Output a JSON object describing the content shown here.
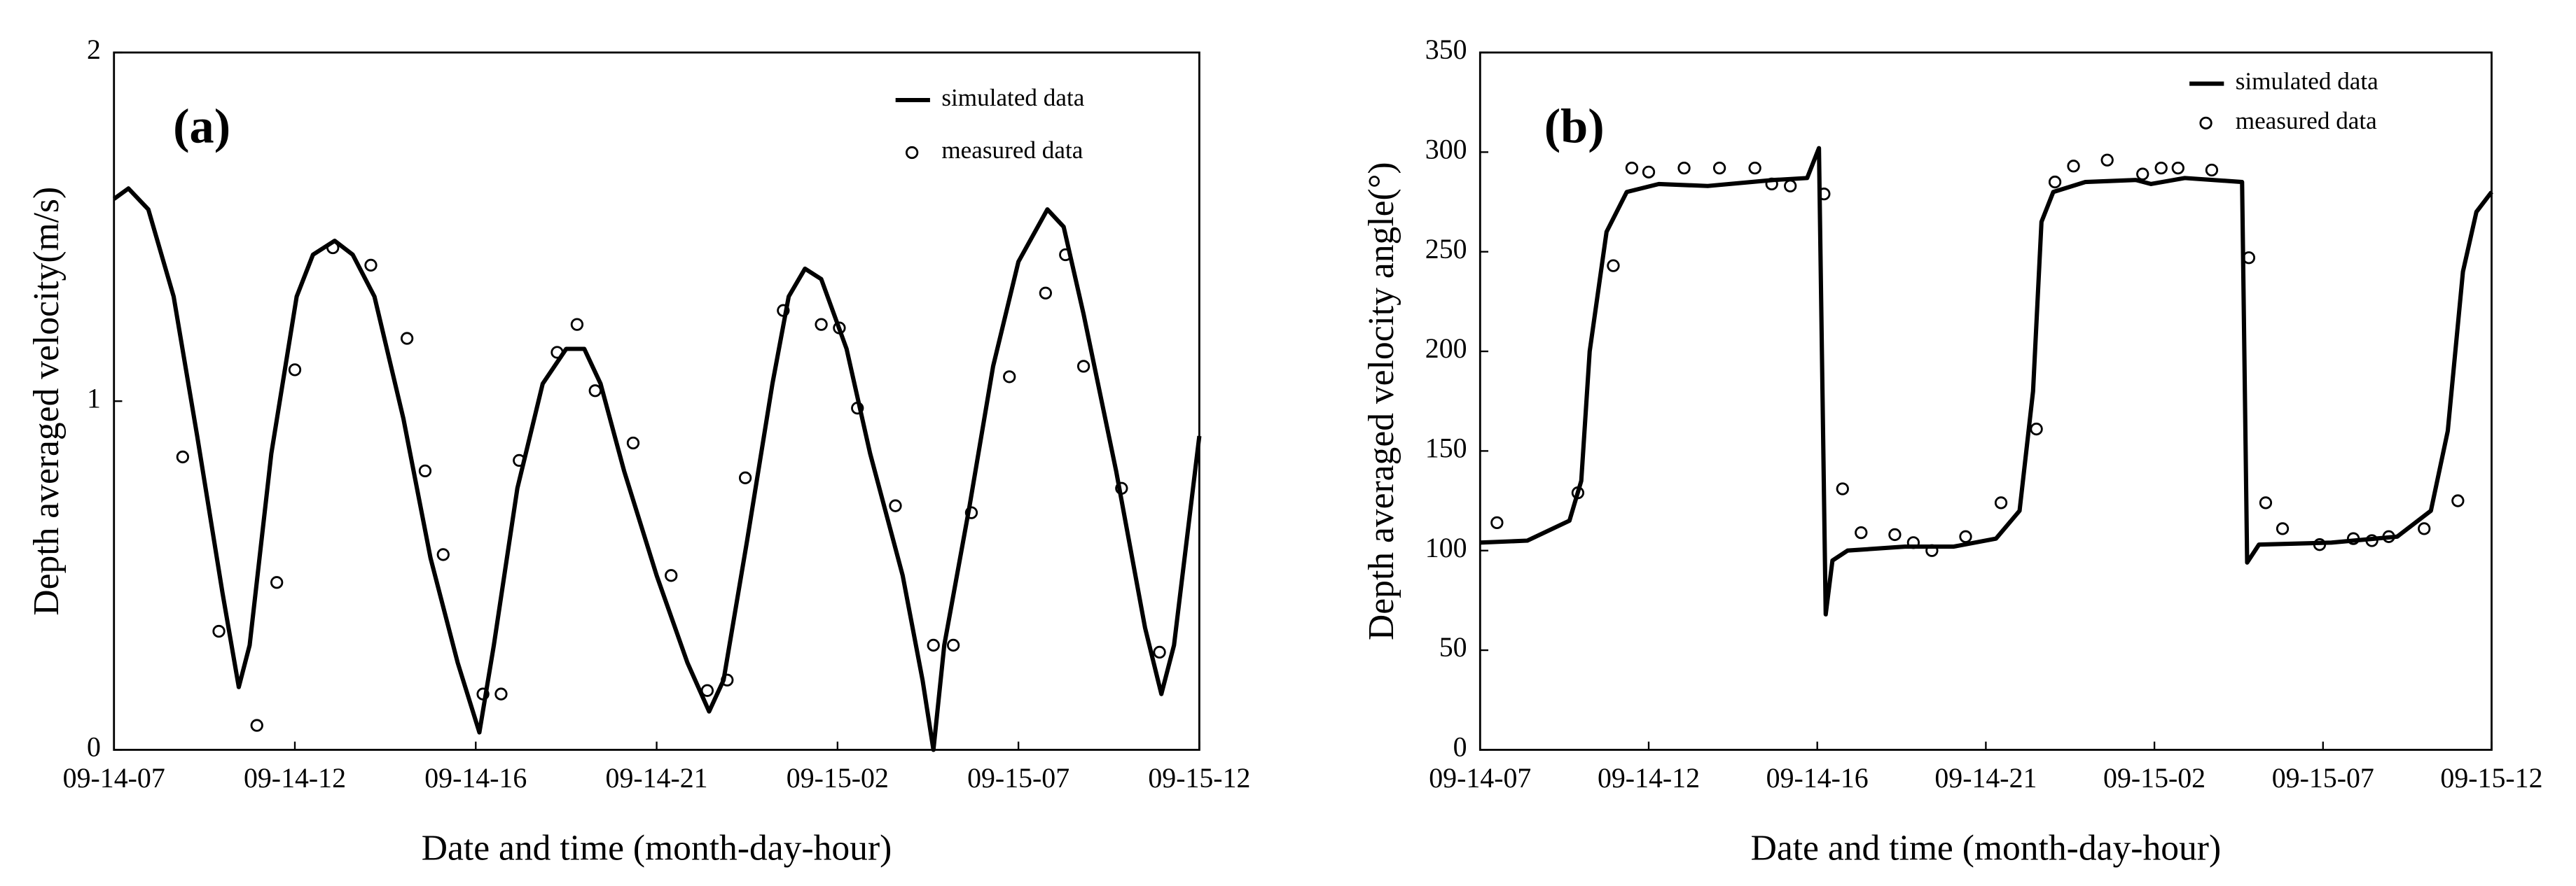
{
  "chart_data": [
    {
      "type": "line",
      "annotation": "(a)",
      "x_label": "Date and time (month-day-hour)",
      "y_label": "Depth averaged velocity(m/s)",
      "xlim": [
        0,
        6
      ],
      "ylim": [
        0,
        2
      ],
      "legend": "upper right",
      "xticks": [
        {
          "value": 0,
          "label": "09-14-07"
        },
        {
          "value": 1,
          "label": "09-14-12"
        },
        {
          "value": 2,
          "label": "09-14-16"
        },
        {
          "value": 3,
          "label": "09-14-21"
        },
        {
          "value": 4,
          "label": "09-15-02"
        },
        {
          "value": 5,
          "label": "09-15-07"
        },
        {
          "value": 6,
          "label": "09-15-12"
        }
      ],
      "yticks": [
        0,
        1,
        2
      ],
      "series": [
        {
          "name": "simulated data",
          "color": "#000000",
          "type": "line",
          "x": [
            0,
            0.08,
            0.19,
            0.33,
            0.46,
            0.6,
            0.69,
            0.75,
            0.87,
            1.01,
            1.1,
            1.22,
            1.32,
            1.44,
            1.6,
            1.75,
            1.9,
            2.02,
            2.1,
            2.23,
            2.37,
            2.5,
            2.6,
            2.69,
            2.82,
            3.0,
            3.17,
            3.29,
            3.37,
            3.5,
            3.64,
            3.73,
            3.82,
            3.91,
            4.05,
            4.18,
            4.36,
            4.47,
            4.53,
            4.59,
            4.73,
            4.86,
            5.0,
            5.16,
            5.25,
            5.36,
            5.54,
            5.7,
            5.79,
            5.86,
            6.0
          ],
          "values": [
            1.58,
            1.61,
            1.55,
            1.3,
            0.9,
            0.45,
            0.18,
            0.3,
            0.85,
            1.3,
            1.42,
            1.46,
            1.42,
            1.3,
            0.95,
            0.55,
            0.25,
            0.05,
            0.3,
            0.75,
            1.05,
            1.15,
            1.15,
            1.05,
            0.8,
            0.5,
            0.25,
            0.11,
            0.2,
            0.6,
            1.05,
            1.3,
            1.38,
            1.35,
            1.15,
            0.85,
            0.5,
            0.2,
            0.0,
            0.3,
            0.7,
            1.1,
            1.4,
            1.55,
            1.5,
            1.25,
            0.8,
            0.35,
            0.16,
            0.3,
            0.9
          ]
        },
        {
          "name": "measured data",
          "color": "#000000",
          "type": "scatter",
          "x": [
            0.38,
            0.58,
            0.79,
            0.9,
            1.0,
            1.21,
            1.42,
            1.62,
            1.72,
            1.82,
            2.04,
            2.14,
            2.24,
            2.45,
            2.56,
            2.66,
            2.87,
            3.08,
            3.28,
            3.39,
            3.49,
            3.7,
            3.91,
            4.01,
            4.11,
            4.32,
            4.53,
            4.64,
            4.74,
            4.95,
            5.15,
            5.26,
            5.36,
            5.57,
            5.78
          ],
          "values": [
            0.84,
            0.34,
            0.07,
            0.48,
            1.09,
            1.44,
            1.39,
            1.18,
            0.8,
            0.56,
            0.16,
            0.16,
            0.83,
            1.14,
            1.22,
            1.03,
            0.88,
            0.5,
            0.17,
            0.2,
            0.78,
            1.26,
            1.22,
            1.21,
            0.98,
            0.7,
            0.3,
            0.3,
            0.68,
            1.07,
            1.31,
            1.42,
            1.1,
            0.75,
            0.28
          ]
        }
      ]
    },
    {
      "type": "line",
      "annotation": "(b)",
      "x_label": "Date and time (month-day-hour)",
      "y_label": "Depth averaged velocity angle(°)",
      "xlim": [
        0,
        6
      ],
      "ylim": [
        0,
        350
      ],
      "legend": "upper right",
      "xticks": [
        {
          "value": 0,
          "label": "09-14-07"
        },
        {
          "value": 1,
          "label": "09-14-12"
        },
        {
          "value": 2,
          "label": "09-14-16"
        },
        {
          "value": 3,
          "label": "09-14-21"
        },
        {
          "value": 4,
          "label": "09-15-02"
        },
        {
          "value": 5,
          "label": "09-15-07"
        },
        {
          "value": 6,
          "label": "09-15-12"
        }
      ],
      "yticks": [
        0,
        50,
        100,
        150,
        200,
        250,
        300,
        350
      ],
      "series": [
        {
          "name": "simulated data",
          "color": "#000000",
          "type": "line",
          "x": [
            0,
            0.28,
            0.53,
            0.6,
            0.65,
            0.75,
            0.87,
            1.06,
            1.35,
            1.74,
            1.94,
            2.01,
            2.05,
            2.09,
            2.18,
            2.52,
            2.81,
            3.06,
            3.2,
            3.28,
            3.33,
            3.4,
            3.59,
            3.89,
            3.98,
            4.18,
            4.52,
            4.55,
            4.62,
            5.05,
            5.44,
            5.64,
            5.74,
            5.83,
            5.91,
            6.0
          ],
          "values": [
            104,
            105,
            115,
            135,
            200,
            260,
            280,
            284,
            283,
            286,
            287,
            302,
            68,
            95,
            100,
            102,
            102,
            106,
            120,
            180,
            265,
            280,
            285,
            286,
            284,
            287,
            285,
            94,
            103,
            104,
            107,
            120,
            160,
            240,
            270,
            280
          ]
        },
        {
          "name": "measured data",
          "color": "#000000",
          "type": "scatter",
          "x": [
            0.1,
            0.58,
            0.79,
            0.9,
            1.0,
            1.21,
            1.42,
            1.63,
            1.73,
            1.84,
            2.04,
            2.15,
            2.26,
            2.46,
            2.57,
            2.68,
            2.88,
            3.09,
            3.3,
            3.41,
            3.52,
            3.72,
            3.93,
            4.04,
            4.14,
            4.34,
            4.56,
            4.66,
            4.76,
            4.98,
            5.18,
            5.29,
            5.39,
            5.6,
            5.8
          ],
          "values": [
            114,
            129,
            243,
            292,
            290,
            292,
            292,
            292,
            284,
            283,
            279,
            131,
            109,
            108,
            104,
            100,
            107,
            124,
            161,
            285,
            293,
            296,
            289,
            292,
            292,
            291,
            247,
            124,
            111,
            103,
            106,
            105,
            107,
            111,
            125
          ]
        }
      ]
    }
  ]
}
